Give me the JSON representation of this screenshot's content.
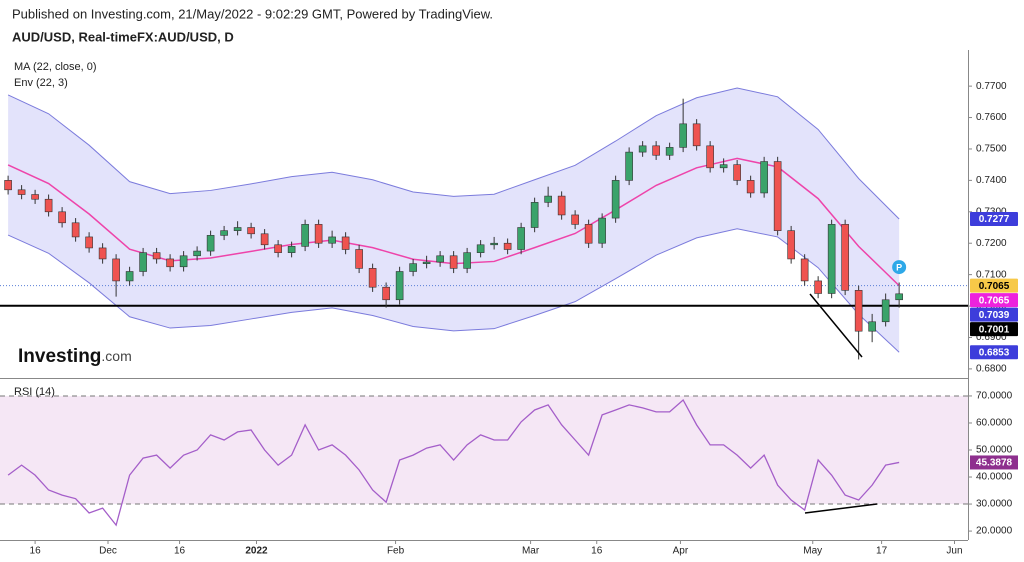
{
  "header": {
    "published": "Published on Investing.com, 21/May/2022 - 9:02:29 GMT, Powered by TradingView.",
    "symbol": "AUD/USD, Real-timeFX:AUD/USD, D"
  },
  "logo": {
    "brand": "Investing",
    "suffix": ".com"
  },
  "chart_data": [
    {
      "type": "candlestick",
      "xlim": [
        -0.6,
        71.1
      ],
      "ylim": [
        0.6771,
        0.7815
      ],
      "yticks": [
        {
          "value": 0.68,
          "label": "0.6800"
        },
        {
          "value": 0.69,
          "label": "0.6900"
        },
        {
          "value": 0.7,
          "label": "0.7000"
        },
        {
          "value": 0.71,
          "label": "0.7100"
        },
        {
          "value": 0.72,
          "label": "0.7200"
        },
        {
          "value": 0.73,
          "label": "0.7300"
        },
        {
          "value": 0.74,
          "label": "0.7400"
        },
        {
          "value": 0.75,
          "label": "0.7500"
        },
        {
          "value": 0.76,
          "label": "0.7600"
        },
        {
          "value": 0.77,
          "label": "0.7700"
        }
      ],
      "up_color": "#3aa36a",
      "down_color": "#ef5350",
      "open": [
        0.74,
        0.737,
        0.7355,
        0.734,
        0.73,
        0.7265,
        0.722,
        0.7185,
        0.715,
        0.708,
        0.711,
        0.717,
        0.715,
        0.7125,
        0.716,
        0.7175,
        0.7225,
        0.724,
        0.725,
        0.723,
        0.7195,
        0.717,
        0.719,
        0.726,
        0.72,
        0.722,
        0.718,
        0.712,
        0.706,
        0.702,
        0.711,
        0.7135,
        0.714,
        0.716,
        0.712,
        0.717,
        0.7195,
        0.72,
        0.718,
        0.725,
        0.733,
        0.735,
        0.729,
        0.726,
        0.72,
        0.728,
        0.74,
        0.749,
        0.751,
        0.748,
        0.7505,
        0.758,
        0.751,
        0.744,
        0.745,
        0.74,
        0.736,
        0.746,
        0.724,
        0.715,
        0.708,
        0.704,
        0.726,
        0.705,
        0.692,
        0.695,
        0.702
      ],
      "high": [
        0.7415,
        0.7385,
        0.737,
        0.7355,
        0.7315,
        0.728,
        0.7235,
        0.72,
        0.7165,
        0.7125,
        0.7185,
        0.7185,
        0.7165,
        0.7175,
        0.719,
        0.724,
        0.7255,
        0.727,
        0.7265,
        0.7245,
        0.721,
        0.7205,
        0.7275,
        0.7275,
        0.724,
        0.7235,
        0.7195,
        0.7135,
        0.7075,
        0.7125,
        0.715,
        0.716,
        0.7175,
        0.7175,
        0.7185,
        0.721,
        0.722,
        0.7215,
        0.7265,
        0.7345,
        0.738,
        0.7365,
        0.7305,
        0.7275,
        0.7295,
        0.7415,
        0.7505,
        0.7525,
        0.7525,
        0.752,
        0.766,
        0.7595,
        0.7525,
        0.747,
        0.7465,
        0.7415,
        0.7475,
        0.7475,
        0.7255,
        0.7165,
        0.7095,
        0.7275,
        0.7275,
        0.7065,
        0.6975,
        0.704,
        0.7075
      ],
      "low": [
        0.7355,
        0.734,
        0.7325,
        0.7285,
        0.725,
        0.7205,
        0.717,
        0.7135,
        0.703,
        0.7065,
        0.7095,
        0.7135,
        0.711,
        0.711,
        0.7145,
        0.716,
        0.721,
        0.7225,
        0.7215,
        0.718,
        0.7155,
        0.7155,
        0.7175,
        0.7185,
        0.7185,
        0.7165,
        0.7105,
        0.7045,
        0.6995,
        0.7005,
        0.7095,
        0.712,
        0.7125,
        0.7105,
        0.7105,
        0.7155,
        0.718,
        0.7165,
        0.7165,
        0.7235,
        0.7315,
        0.7275,
        0.7245,
        0.7185,
        0.7185,
        0.7265,
        0.7385,
        0.7475,
        0.7465,
        0.7465,
        0.749,
        0.7495,
        0.7425,
        0.7425,
        0.7385,
        0.7345,
        0.7345,
        0.7225,
        0.7135,
        0.7065,
        0.7025,
        0.7025,
        0.7035,
        0.683,
        0.6885,
        0.6935,
        0.6995
      ],
      "close": [
        0.737,
        0.7355,
        0.734,
        0.73,
        0.7265,
        0.722,
        0.7185,
        0.715,
        0.708,
        0.711,
        0.717,
        0.715,
        0.7125,
        0.716,
        0.7175,
        0.7225,
        0.724,
        0.725,
        0.723,
        0.7195,
        0.717,
        0.719,
        0.726,
        0.72,
        0.722,
        0.718,
        0.712,
        0.706,
        0.702,
        0.711,
        0.7135,
        0.714,
        0.716,
        0.712,
        0.717,
        0.7195,
        0.72,
        0.718,
        0.725,
        0.733,
        0.735,
        0.729,
        0.726,
        0.72,
        0.728,
        0.74,
        0.749,
        0.751,
        0.748,
        0.7505,
        0.758,
        0.751,
        0.744,
        0.745,
        0.74,
        0.736,
        0.746,
        0.724,
        0.715,
        0.708,
        0.704,
        0.726,
        0.705,
        0.692,
        0.695,
        0.702,
        0.7039
      ],
      "ma": {
        "name": "MA (22, close, 0)",
        "color": "#ee44aa",
        "x": [
          0,
          3,
          6,
          9,
          12,
          15,
          18,
          21,
          24,
          27,
          30,
          33,
          36,
          39,
          42,
          45,
          48,
          51,
          54,
          57,
          60,
          63,
          66
        ],
        "values": [
          0.7449,
          0.739,
          0.7293,
          0.7181,
          0.7144,
          0.7153,
          0.7174,
          0.7196,
          0.721,
          0.7186,
          0.7149,
          0.7135,
          0.7142,
          0.7186,
          0.7231,
          0.7306,
          0.7384,
          0.744,
          0.747,
          0.7443,
          0.7342,
          0.719,
          0.7065
        ]
      },
      "envelope": {
        "name": "Env (22, 3)",
        "color": "#7b7bdc",
        "fill": "#e3e3fb",
        "x": [
          0,
          3,
          6,
          9,
          12,
          15,
          18,
          21,
          24,
          27,
          30,
          33,
          36,
          39,
          42,
          45,
          48,
          51,
          54,
          57,
          60,
          63,
          66
        ],
        "upper": [
          0.7672,
          0.7612,
          0.7512,
          0.7396,
          0.7358,
          0.7368,
          0.7389,
          0.7412,
          0.7426,
          0.7402,
          0.7363,
          0.7349,
          0.7356,
          0.7402,
          0.7448,
          0.7525,
          0.7606,
          0.7663,
          0.7694,
          0.7666,
          0.7562,
          0.7406,
          0.7277
        ],
        "lower": [
          0.7226,
          0.7168,
          0.7074,
          0.6966,
          0.693,
          0.6938,
          0.6959,
          0.698,
          0.6994,
          0.697,
          0.6935,
          0.6921,
          0.6928,
          0.697,
          0.7014,
          0.7087,
          0.7162,
          0.7217,
          0.7246,
          0.722,
          0.7122,
          0.6974,
          0.6853
        ]
      },
      "last_price": {
        "value": 0.7065,
        "label": "0.7065",
        "color": "#f7c948"
      },
      "hline": {
        "value": 0.7001,
        "label": "0.7001",
        "color": "#000000"
      },
      "price_labels": [
        {
          "value": 0.7277,
          "label": "0.7277",
          "color": "#3d3ddb"
        },
        {
          "value": 0.7065,
          "label": "0.7065",
          "color": "#ee22dd"
        },
        {
          "value": 0.7039,
          "label": "0.7039",
          "color": "#3d3ddb"
        },
        {
          "value": 0.6853,
          "label": "0.6853",
          "color": "#3d3ddb"
        }
      ],
      "marker": {
        "value": 0.7124,
        "label": "P"
      }
    },
    {
      "type": "line",
      "title": "RSI (14)",
      "color": "#a45ec9",
      "xlim": [
        -0.6,
        71.1
      ],
      "ylim": [
        16.7,
        75.9
      ],
      "yticks": [
        {
          "value": 20,
          "label": "20.0000"
        },
        {
          "value": 30,
          "label": "30.0000"
        },
        {
          "value": 40,
          "label": "40.0000"
        },
        {
          "value": 50,
          "label": "50.0000"
        },
        {
          "value": 60,
          "label": "60.0000"
        },
        {
          "value": 70,
          "label": "70.0000"
        }
      ],
      "bands": [
        30,
        70
      ],
      "values": [
        40.7,
        44.4,
        40.7,
        35.2,
        33.3,
        32,
        26.7,
        28.5,
        22.2,
        40.7,
        47,
        48.1,
        43.3,
        48.1,
        50,
        55.6,
        53.7,
        56.7,
        57.4,
        50,
        44.4,
        48.1,
        59.3,
        50,
        51.9,
        48.1,
        42.6,
        35.2,
        30.7,
        46.3,
        48.1,
        50.7,
        51.9,
        46.3,
        51.9,
        55.6,
        53.7,
        53.7,
        60.4,
        64.8,
        66.7,
        59.3,
        53.7,
        48.1,
        63,
        64.8,
        66.7,
        65.6,
        64.1,
        64.1,
        68.5,
        59.3,
        51.9,
        51.9,
        48.1,
        43.3,
        48.1,
        37,
        31.5,
        27.8,
        46.3,
        40.7,
        33.3,
        31.5,
        37,
        44.4,
        45.4
      ],
      "last_label": {
        "value": 45.3878,
        "label": "45.3878"
      },
      "xticks": [
        {
          "value": 2,
          "label": "16"
        },
        {
          "value": 7.4,
          "label": "Dec"
        },
        {
          "value": 12.7,
          "label": "16"
        },
        {
          "value": 18.4,
          "label": "2022"
        },
        {
          "value": 28.7,
          "label": "Feb"
        },
        {
          "value": 38.7,
          "label": "Mar"
        },
        {
          "value": 43.6,
          "label": "16"
        },
        {
          "value": 49.8,
          "label": "Apr"
        },
        {
          "value": 59.6,
          "label": "May"
        },
        {
          "value": 64.7,
          "label": "17"
        },
        {
          "value": 70.1,
          "label": "Jun"
        }
      ]
    }
  ]
}
